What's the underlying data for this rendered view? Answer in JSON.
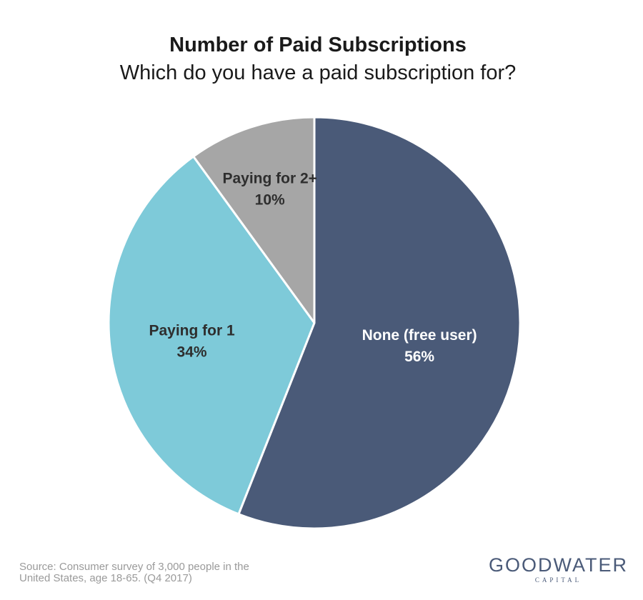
{
  "title": "Number of Paid Subscriptions",
  "subtitle": "Which do you have a paid subscription for?",
  "chart_data": {
    "type": "pie",
    "title": "Number of Paid Subscriptions",
    "subtitle": "Which do you have a paid subscription for?",
    "slices": [
      {
        "label": "None (free user)",
        "value": 56,
        "value_label": "56%",
        "color": "#4a5a78",
        "label_color": "#ffffff"
      },
      {
        "label": "Paying for 1",
        "value": 34,
        "value_label": "34%",
        "color": "#7ecad9",
        "label_color": "#2e2e2e"
      },
      {
        "label": "Paying for 2+",
        "value": 10,
        "value_label": "10%",
        "color": "#a6a6a6",
        "label_color": "#2e2e2e"
      }
    ],
    "start": "12 o'clock",
    "direction": "clockwise",
    "legend": "none"
  },
  "source": {
    "line1": "Source: Consumer survey of 3,000 people in the",
    "line2": "United States, age 18-65. (Q4 2017)"
  },
  "logo": {
    "main": "GOODWATER",
    "sub": "CAPITAL"
  }
}
